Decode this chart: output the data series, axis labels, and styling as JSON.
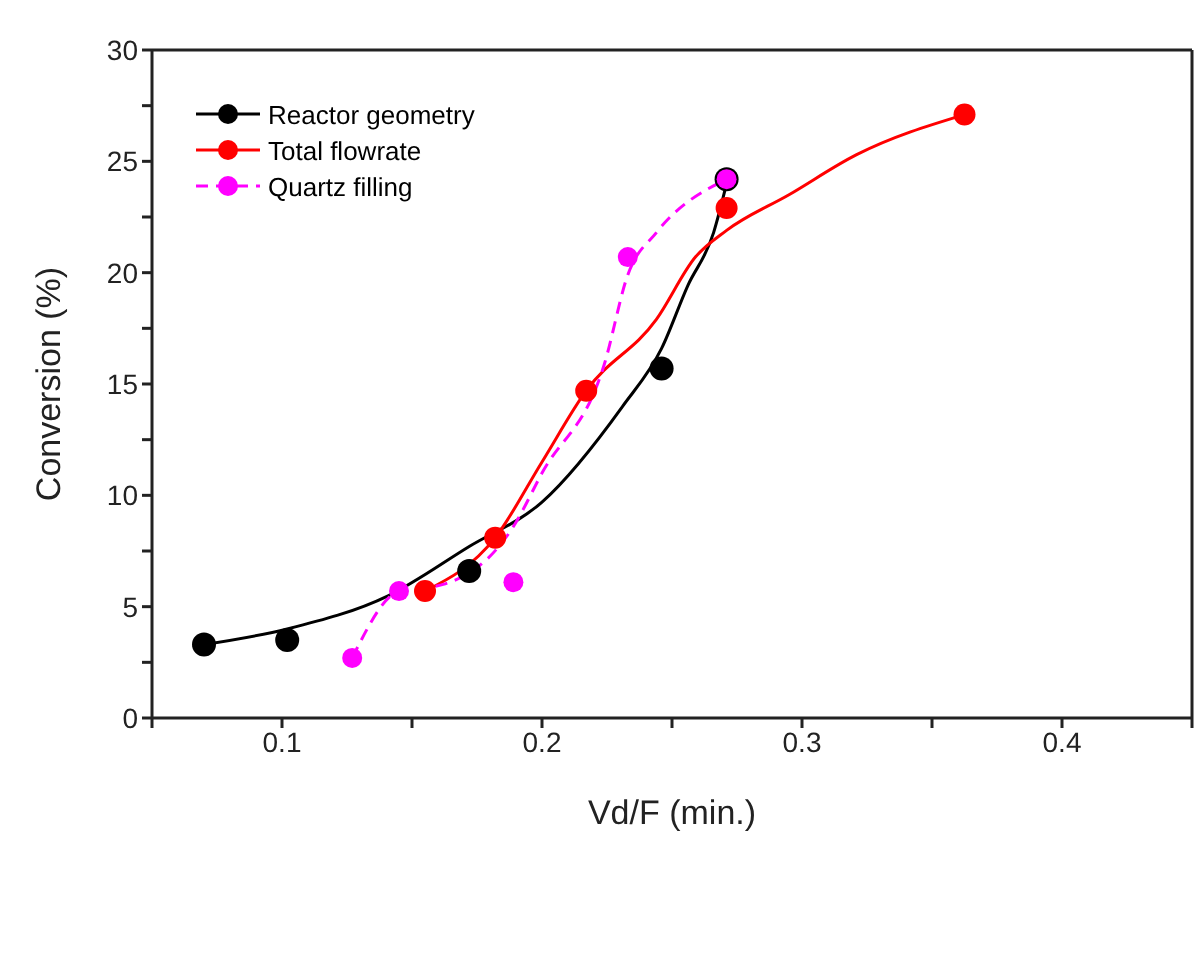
{
  "chart_data": {
    "type": "scatter",
    "xlabel": "Vd/F (min.)",
    "ylabel": "Conversion (%)",
    "xlim": [
      0.05,
      0.45
    ],
    "xticks": [
      {
        "value": 0.05,
        "label": null
      },
      0.1,
      {
        "value": 0.15,
        "label": null
      },
      0.2,
      {
        "value": 0.25,
        "label": null
      },
      0.3,
      {
        "value": 0.35,
        "label": null
      },
      0.4,
      {
        "value": 0.45,
        "label": null
      }
    ],
    "ylim": [
      0,
      30
    ],
    "yticks": [
      0,
      {
        "value": 2.5,
        "label": null
      },
      5,
      {
        "value": 7.5,
        "label": null
      },
      10,
      {
        "value": 12.5,
        "label": null
      },
      15,
      {
        "value": 17.5,
        "label": null
      },
      20,
      {
        "value": 22.5,
        "label": null
      },
      25,
      {
        "value": 27.5,
        "label": null
      },
      30
    ],
    "legend": "top left",
    "grid": false,
    "series": [
      {
        "name": "Reactor geometry",
        "marker": "circle",
        "color": "#000000",
        "x": [
          0.07,
          0.102,
          0.172,
          0.246,
          0.271
        ],
        "values": [
          3.3,
          3.5,
          6.6,
          15.7,
          24.2
        ]
      },
      {
        "name": "Total flowrate",
        "marker": "circle",
        "color": "#ff0000",
        "x": [
          0.155,
          0.182,
          0.217,
          0.271,
          0.3625
        ],
        "values": [
          5.7,
          8.1,
          14.7,
          22.9,
          27.1
        ]
      },
      {
        "name": "Quartz filling",
        "marker": "circle",
        "color": "#ff00ff",
        "x": [
          0.127,
          0.145,
          0.189,
          0.233,
          0.271
        ],
        "values": [
          2.7,
          5.7,
          6.1,
          20.7,
          24.2
        ]
      },
      {
        "type": "line",
        "color": "#000000",
        "line_style": "solid",
        "x": [
          0.07,
          0.102,
          0.141,
          0.172,
          0.2,
          0.231,
          0.246,
          0.256,
          0.266,
          0.271
        ],
        "values": [
          3.3,
          4.0,
          5.5,
          7.7,
          9.7,
          14.0,
          16.6,
          19.4,
          21.8,
          24.0
        ]
      },
      {
        "type": "line",
        "color": "#ff0000",
        "line_style": "solid",
        "x": [
          0.155,
          0.182,
          0.2,
          0.217,
          0.244,
          0.259,
          0.271,
          0.295,
          0.321,
          0.3625
        ],
        "values": [
          5.7,
          8.1,
          11.5,
          14.7,
          17.9,
          20.7,
          21.9,
          23.5,
          25.3,
          27.1
        ]
      },
      {
        "type": "line",
        "color": "#ff00ff",
        "line_style": "dashed",
        "x": [
          0.127,
          0.145,
          0.162,
          0.189,
          0.2,
          0.224,
          0.233,
          0.244,
          0.271
        ],
        "values": [
          2.7,
          5.7,
          6.0,
          8.6,
          11.0,
          15.9,
          19.9,
          21.8,
          24.2
        ]
      }
    ]
  }
}
